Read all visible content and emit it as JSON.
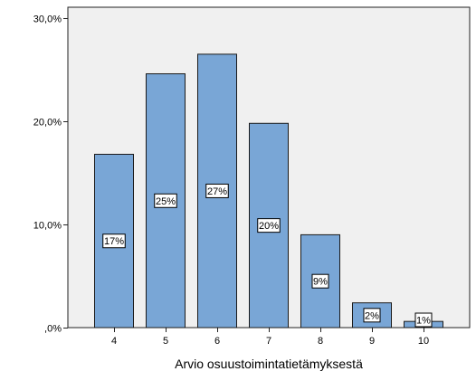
{
  "chart_data": {
    "type": "bar",
    "title": "",
    "xlabel": "Arvio osuustoimintatietämyksestä",
    "ylabel": "",
    "categories": [
      "4",
      "5",
      "6",
      "7",
      "8",
      "9",
      "10"
    ],
    "values": [
      16.8,
      24.6,
      26.5,
      19.8,
      9.0,
      2.4,
      0.6
    ],
    "data_labels": [
      "17%",
      "25%",
      "27%",
      "20%",
      "9%",
      "2%",
      "1%"
    ],
    "y_ticks": [
      0,
      10,
      20,
      30
    ],
    "y_tick_labels": [
      ",0%",
      "10,0%",
      "20,0%",
      "30,0%"
    ],
    "ylim": [
      0,
      30
    ],
    "grid": false,
    "colors": {
      "plot_background": "#f0f0f0",
      "bar_fill": "#79a6d6",
      "bar_stroke": "#1a1a1a",
      "label_box": "#ffffff"
    }
  }
}
